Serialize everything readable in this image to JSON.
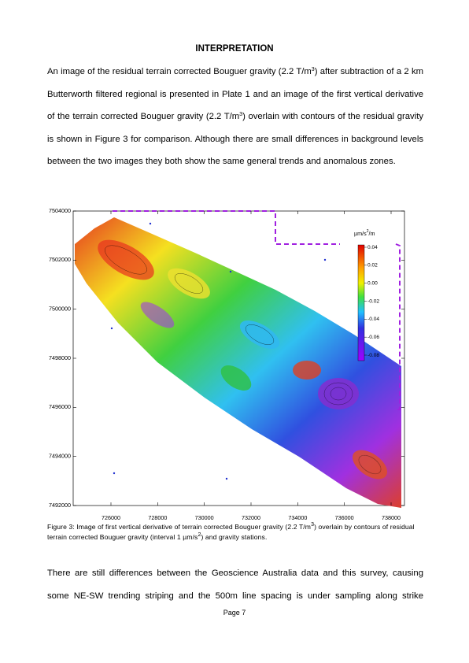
{
  "heading": "INTERPRETATION",
  "paragraphs": [
    [
      "An image of the residual terrain corrected Bouguer gravity (2.2 T/m",
      "3",
      ") after subtraction of a 2 km Butterworth filtered regional is presented in Plate 1 and an image of the first vertical derivative of the terrain corrected Bouguer gravity (2.2 T/m",
      "3",
      ") overlain with contours of the residual gravity is shown in Figure 3 for comparison. Although there are small differences in background levels between the two images they both show the same general trends and anomalous zones."
    ],
    [
      "There are still differences between the Geoscience Australia data and this survey, causing some NE-SW trending striping and the 500m line spacing is under sampling along strike"
    ]
  ],
  "figure": {
    "y_ticks": [
      "7504000",
      "7502000",
      "7500000",
      "7498000",
      "7496000",
      "7494000",
      "7492000"
    ],
    "x_ticks": [
      "726000",
      "728000",
      "730000",
      "732000",
      "734000",
      "736000",
      "738000"
    ],
    "colorbar": {
      "unit": [
        "µm/s",
        "2",
        "/m"
      ],
      "ticks": [
        "0.04",
        "0.02",
        "0.00",
        "-0.02",
        "-0.04",
        "-0.06",
        "-0.08"
      ]
    },
    "caption": [
      "Figure 3: Image of first vertical derivative of terrain corrected Bouguer gravity (2.2 T/m",
      "3",
      ") overlain by contours of residual terrain corrected Bouguer gravity (interval 1 µm/s",
      "2",
      ") and gravity stations."
    ]
  },
  "footer": "Page 7"
}
